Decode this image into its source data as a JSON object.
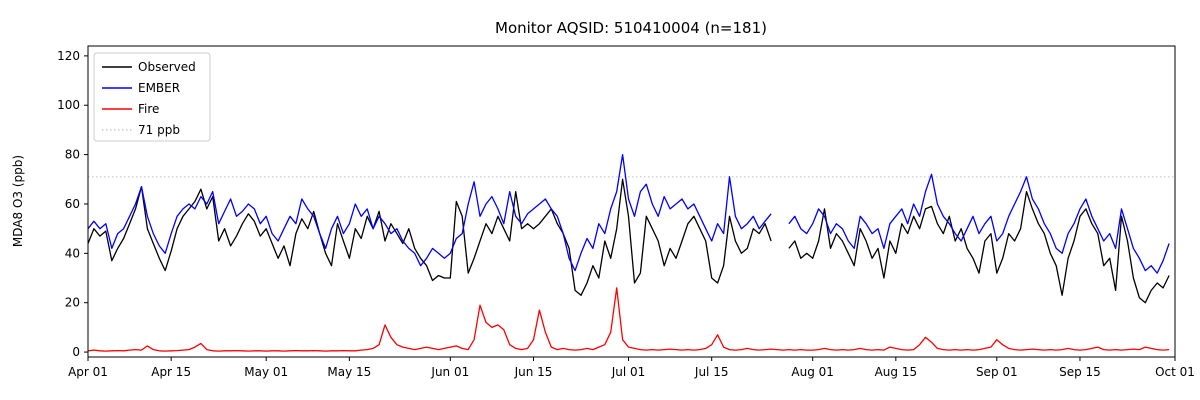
{
  "figure": {
    "title": "Monitor AQSID: 510410004 (n=181)",
    "background": "#ffffff"
  },
  "chart_data": {
    "type": "line",
    "title": "Monitor AQSID: 510410004 (n=181)",
    "xlabel": "",
    "ylabel": "MDA8 O3 (ppb)",
    "xlim": [
      0,
      183
    ],
    "ylim": [
      -2,
      124
    ],
    "grid": false,
    "y_ticks": [
      0,
      20,
      40,
      60,
      80,
      100,
      120
    ],
    "x_ticks": [
      {
        "label": "Apr 01",
        "x": 0
      },
      {
        "label": "Apr 15",
        "x": 14
      },
      {
        "label": "May 01",
        "x": 30
      },
      {
        "label": "May 15",
        "x": 44
      },
      {
        "label": "Jun 01",
        "x": 61
      },
      {
        "label": "Jun 15",
        "x": 75
      },
      {
        "label": "Jul 01",
        "x": 91
      },
      {
        "label": "Jul 15",
        "x": 105
      },
      {
        "label": "Aug 01",
        "x": 122
      },
      {
        "label": "Aug 15",
        "x": 136
      },
      {
        "label": "Sep 01",
        "x": 153
      },
      {
        "label": "Sep 15",
        "x": 167
      },
      {
        "label": "Oct 01",
        "x": 183
      }
    ],
    "threshold": {
      "value": 71,
      "label": "71 ppb",
      "color": "#c9c9c9",
      "style": "dotted"
    },
    "legend": {
      "position": "upper left",
      "entries": [
        {
          "label": "Observed",
          "color": "#000000",
          "dash": "solid"
        },
        {
          "label": "EMBER",
          "color": "#0000ff",
          "dash": "solid"
        },
        {
          "label": "Fire",
          "color": "#ff0000",
          "dash": "solid"
        },
        {
          "label": "71 ppb",
          "color": "#c9c9c9",
          "dash": "dotted"
        }
      ]
    },
    "series": [
      {
        "name": "Observed",
        "color": "#000000",
        "values": [
          44,
          50,
          47,
          49,
          37,
          42,
          46,
          52,
          58,
          67,
          50,
          44,
          38,
          33,
          41,
          50,
          55,
          58,
          61,
          66,
          58,
          63,
          45,
          50,
          43,
          47,
          52,
          56,
          53,
          47,
          50,
          44,
          38,
          43,
          35,
          48,
          54,
          50,
          57,
          48,
          40,
          35,
          52,
          45,
          38,
          50,
          46,
          55,
          50,
          57,
          45,
          52,
          48,
          44,
          50,
          42,
          38,
          35,
          29,
          31,
          30,
          30,
          61,
          55,
          32,
          38,
          45,
          52,
          48,
          55,
          50,
          45,
          65,
          50,
          52,
          50,
          52,
          55,
          58,
          52,
          48,
          42,
          25,
          23,
          28,
          35,
          30,
          45,
          38,
          50,
          70,
          55,
          28,
          32,
          55,
          50,
          45,
          35,
          42,
          38,
          45,
          52,
          55,
          50,
          45,
          30,
          28,
          35,
          55,
          45,
          40,
          42,
          50,
          48,
          52,
          45,
          null,
          null,
          42,
          45,
          38,
          40,
          38,
          45,
          58,
          42,
          48,
          45,
          40,
          35,
          50,
          45,
          38,
          42,
          30,
          45,
          40,
          52,
          48,
          55,
          50,
          58,
          59,
          52,
          48,
          55,
          45,
          50,
          42,
          38,
          32,
          45,
          48,
          32,
          38,
          48,
          45,
          50,
          65,
          58,
          52,
          48,
          40,
          35,
          23,
          38,
          45,
          55,
          58,
          52,
          48,
          35,
          38,
          25,
          55,
          45,
          30,
          22,
          20,
          25,
          28,
          26,
          31
        ]
      },
      {
        "name": "EMBER",
        "color": "#0000ff",
        "values": [
          50,
          53,
          50,
          52,
          42,
          48,
          50,
          55,
          60,
          67,
          55,
          48,
          43,
          40,
          48,
          55,
          58,
          60,
          58,
          63,
          60,
          65,
          52,
          57,
          62,
          55,
          57,
          60,
          58,
          52,
          55,
          48,
          45,
          50,
          55,
          52,
          62,
          58,
          55,
          48,
          42,
          50,
          55,
          48,
          52,
          60,
          55,
          58,
          50,
          55,
          52,
          48,
          50,
          45,
          42,
          40,
          35,
          38,
          42,
          40,
          38,
          40,
          46,
          48,
          60,
          69,
          55,
          60,
          63,
          58,
          52,
          65,
          55,
          52,
          56,
          58,
          60,
          62,
          58,
          55,
          48,
          38,
          33,
          40,
          46,
          42,
          52,
          48,
          58,
          65,
          80,
          62,
          55,
          65,
          68,
          60,
          55,
          63,
          58,
          60,
          62,
          58,
          60,
          55,
          50,
          45,
          52,
          48,
          71,
          55,
          50,
          52,
          55,
          50,
          53,
          56,
          null,
          null,
          52,
          55,
          50,
          48,
          52,
          58,
          55,
          48,
          52,
          50,
          45,
          42,
          55,
          52,
          48,
          50,
          42,
          52,
          55,
          58,
          52,
          60,
          55,
          65,
          72,
          60,
          55,
          52,
          48,
          45,
          50,
          55,
          48,
          52,
          55,
          45,
          48,
          55,
          60,
          65,
          71,
          62,
          58,
          52,
          48,
          42,
          40,
          48,
          52,
          58,
          62,
          55,
          50,
          45,
          48,
          42,
          58,
          50,
          42,
          38,
          33,
          35,
          32,
          37,
          44
        ]
      },
      {
        "name": "Fire",
        "color": "#ff0000",
        "values": [
          0.5,
          0.8,
          0.5,
          0.4,
          0.5,
          0.6,
          0.5,
          0.8,
          1,
          0.8,
          2.5,
          1,
          0.5,
          0.4,
          0.5,
          0.6,
          0.8,
          1,
          2,
          3.5,
          1,
          0.5,
          0.4,
          0.5,
          0.5,
          0.6,
          0.5,
          0.4,
          0.5,
          0.5,
          0.4,
          0.5,
          0.5,
          0.4,
          0.5,
          0.6,
          0.5,
          0.5,
          0.6,
          0.5,
          0.4,
          0.5,
          0.5,
          0.6,
          0.5,
          0.5,
          0.8,
          1,
          1.5,
          3,
          11,
          6,
          3,
          2,
          1.5,
          1,
          1.5,
          2,
          1.5,
          1,
          1.5,
          2,
          2.5,
          1.5,
          1,
          5,
          19,
          12,
          10,
          11,
          9,
          3,
          1.5,
          1,
          1.5,
          5,
          17,
          8,
          2,
          1,
          1.5,
          1,
          0.8,
          1,
          1.5,
          1,
          2,
          3,
          8,
          26,
          5,
          2,
          1.5,
          1,
          0.8,
          1,
          0.8,
          1,
          1.2,
          1,
          0.8,
          1,
          0.8,
          1,
          1.5,
          3,
          7,
          2,
          1,
          0.8,
          1,
          1.5,
          1,
          0.8,
          1,
          1.2,
          1,
          0.8,
          1,
          0.8,
          1,
          0.8,
          0.8,
          1,
          1.5,
          1,
          0.8,
          1,
          0.8,
          1,
          1.5,
          1,
          0.8,
          1,
          0.8,
          2,
          1.5,
          1,
          0.8,
          1,
          3,
          6,
          4,
          1.5,
          1,
          0.8,
          1,
          0.8,
          1,
          0.8,
          1,
          1.5,
          2,
          5,
          3,
          1.5,
          1,
          0.8,
          1,
          1.2,
          1,
          0.8,
          1,
          0.8,
          1,
          1.5,
          1,
          0.8,
          1,
          1.5,
          2,
          1,
          0.8,
          1,
          0.8,
          1,
          1.2,
          1,
          2,
          1.5,
          1,
          0.8,
          1
        ]
      }
    ]
  }
}
